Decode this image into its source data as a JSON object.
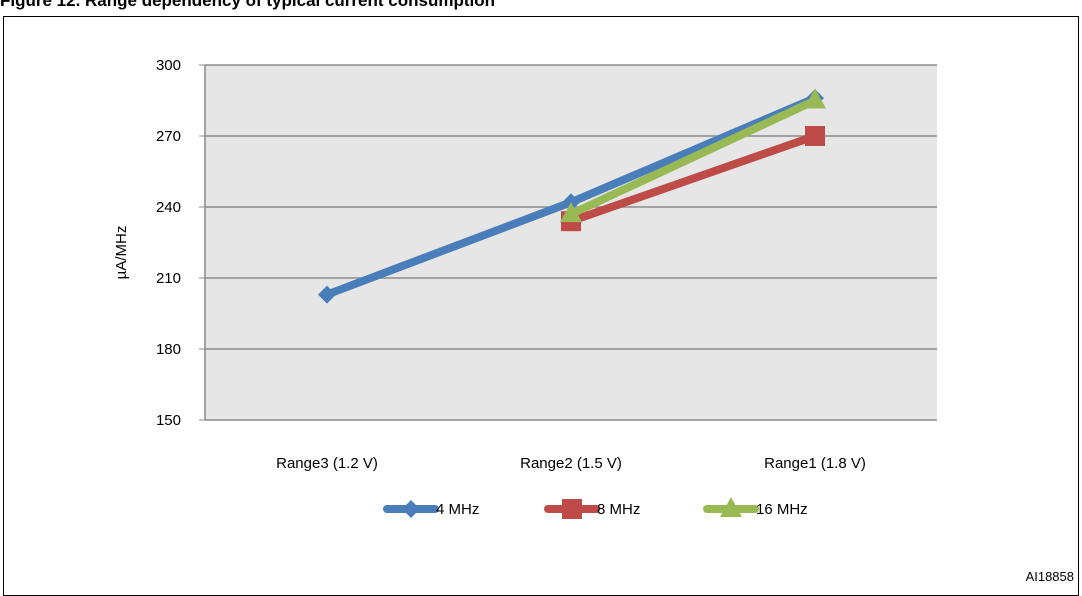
{
  "figure": {
    "caption": "Figure 12. Range dependency of typical current consumption",
    "figure_id": "AI18858"
  },
  "chart_data": {
    "type": "line",
    "categories": [
      "Range3 (1.2 V)",
      "Range2 (1.5 V)",
      "Range1 (1.8 V)"
    ],
    "series": [
      {
        "name": "4 MHz",
        "values": [
          203,
          242,
          286
        ],
        "color": "#4a7ebb",
        "marker": "diamond"
      },
      {
        "name": "8 MHz",
        "values": [
          null,
          234,
          270
        ],
        "color": "#be4b48",
        "marker": "square"
      },
      {
        "name": "16 MHz",
        "values": [
          null,
          237,
          285
        ],
        "color": "#98b954",
        "marker": "triangle"
      }
    ],
    "ylabel": "µA/MHz",
    "xlabel": "",
    "ylim": [
      150,
      300
    ],
    "yticks": [
      150,
      180,
      210,
      240,
      270,
      300
    ],
    "grid": true,
    "legend": "bottom",
    "plot_background": "#e6e6e6"
  }
}
